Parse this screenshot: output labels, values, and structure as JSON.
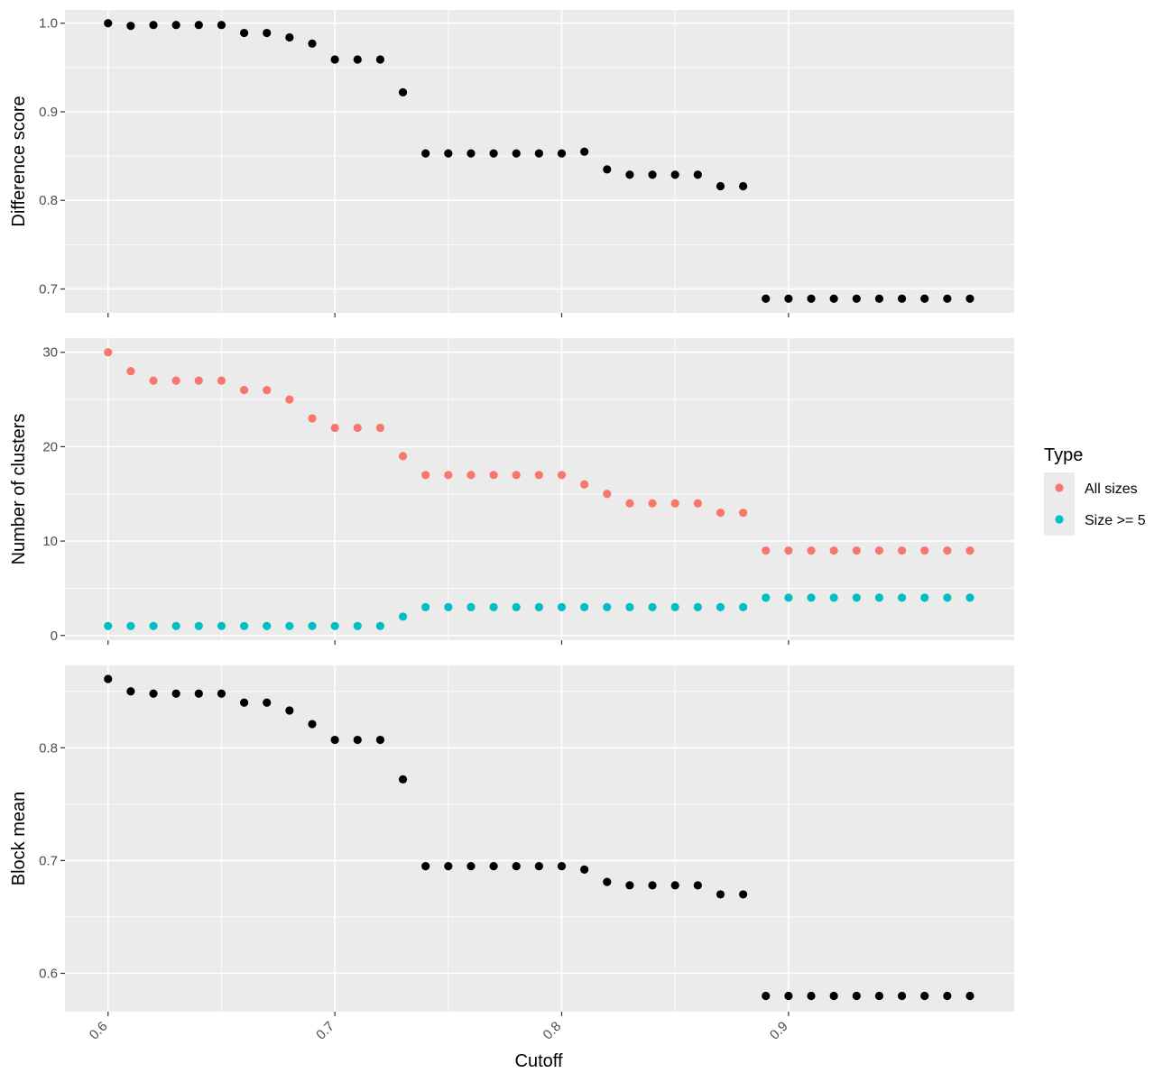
{
  "chart_data": {
    "type": "scatter",
    "xlabel": "Cutoff",
    "x_ticks": [
      0.6,
      0.7,
      0.8,
      0.9
    ],
    "x_tick_labels": [
      "0.6",
      "0.7",
      "0.8",
      "0.9"
    ],
    "xlim": [
      0.581,
      0.9995
    ],
    "x": [
      0.6,
      0.61,
      0.62,
      0.63,
      0.64,
      0.65,
      0.66,
      0.67,
      0.68,
      0.69,
      0.7,
      0.71,
      0.72,
      0.73,
      0.74,
      0.75,
      0.76,
      0.77,
      0.78,
      0.79,
      0.8,
      0.81,
      0.82,
      0.83,
      0.84,
      0.85,
      0.86,
      0.87,
      0.88,
      0.89,
      0.9,
      0.91,
      0.92,
      0.93,
      0.94,
      0.95,
      0.96,
      0.97,
      0.98
    ],
    "panels": [
      {
        "ylabel": "Difference score",
        "ylim": [
          0.673,
          1.015
        ],
        "y_ticks": [
          0.7,
          0.8,
          0.9,
          1.0
        ],
        "y_tick_labels": [
          "0.7",
          "0.8",
          "0.9",
          "1.0"
        ],
        "series": [
          {
            "color": "#000000",
            "values": [
              1.0,
              0.997,
              0.998,
              0.998,
              0.998,
              0.998,
              0.989,
              0.989,
              0.984,
              0.977,
              0.959,
              0.959,
              0.959,
              0.922,
              0.853,
              0.853,
              0.853,
              0.853,
              0.853,
              0.853,
              0.853,
              0.855,
              0.835,
              0.829,
              0.829,
              0.829,
              0.829,
              0.816,
              0.816,
              0.689,
              0.689,
              0.689,
              0.689,
              0.689,
              0.689,
              0.689,
              0.689,
              0.689,
              0.689
            ]
          }
        ]
      },
      {
        "ylabel": "Number of clusters",
        "ylim": [
          -0.5,
          31.5
        ],
        "y_ticks": [
          0,
          10,
          20,
          30
        ],
        "y_tick_labels": [
          "0",
          "10",
          "20",
          "30"
        ],
        "series": [
          {
            "name": "All sizes",
            "color": "#F8766D",
            "values": [
              30,
              28,
              27,
              27,
              27,
              27,
              26,
              26,
              25,
              23,
              22,
              22,
              22,
              19,
              17,
              17,
              17,
              17,
              17,
              17,
              17,
              16,
              15,
              14,
              14,
              14,
              14,
              13,
              13,
              9,
              9,
              9,
              9,
              9,
              9,
              9,
              9,
              9,
              9
            ]
          },
          {
            "name": "Size >= 5",
            "color": "#00BFC4",
            "values": [
              1,
              1,
              1,
              1,
              1,
              1,
              1,
              1,
              1,
              1,
              1,
              1,
              1,
              2,
              3,
              3,
              3,
              3,
              3,
              3,
              3,
              3,
              3,
              3,
              3,
              3,
              3,
              3,
              3,
              4,
              4,
              4,
              4,
              4,
              4,
              4,
              4,
              4,
              4
            ]
          }
        ]
      },
      {
        "ylabel": "Block mean",
        "ylim": [
          0.566,
          0.873
        ],
        "y_ticks": [
          0.6,
          0.7,
          0.8
        ],
        "y_tick_labels": [
          "0.6",
          "0.7",
          "0.8"
        ],
        "series": [
          {
            "color": "#000000",
            "values": [
              0.861,
              0.85,
              0.848,
              0.848,
              0.848,
              0.848,
              0.84,
              0.84,
              0.833,
              0.821,
              0.807,
              0.807,
              0.807,
              0.772,
              0.695,
              0.695,
              0.695,
              0.695,
              0.695,
              0.695,
              0.695,
              0.692,
              0.681,
              0.678,
              0.678,
              0.678,
              0.678,
              0.67,
              0.67,
              0.58,
              0.58,
              0.58,
              0.58,
              0.58,
              0.58,
              0.58,
              0.58,
              0.58,
              0.58
            ]
          }
        ]
      }
    ],
    "legend": {
      "title": "Type",
      "position": "right",
      "entries": [
        {
          "label": "All sizes",
          "color": "#F8766D"
        },
        {
          "label": "Size >= 5",
          "color": "#00BFC4"
        }
      ]
    },
    "grid": true,
    "panel_background": "#EBEBEB",
    "grid_color": "#FFFFFF"
  }
}
